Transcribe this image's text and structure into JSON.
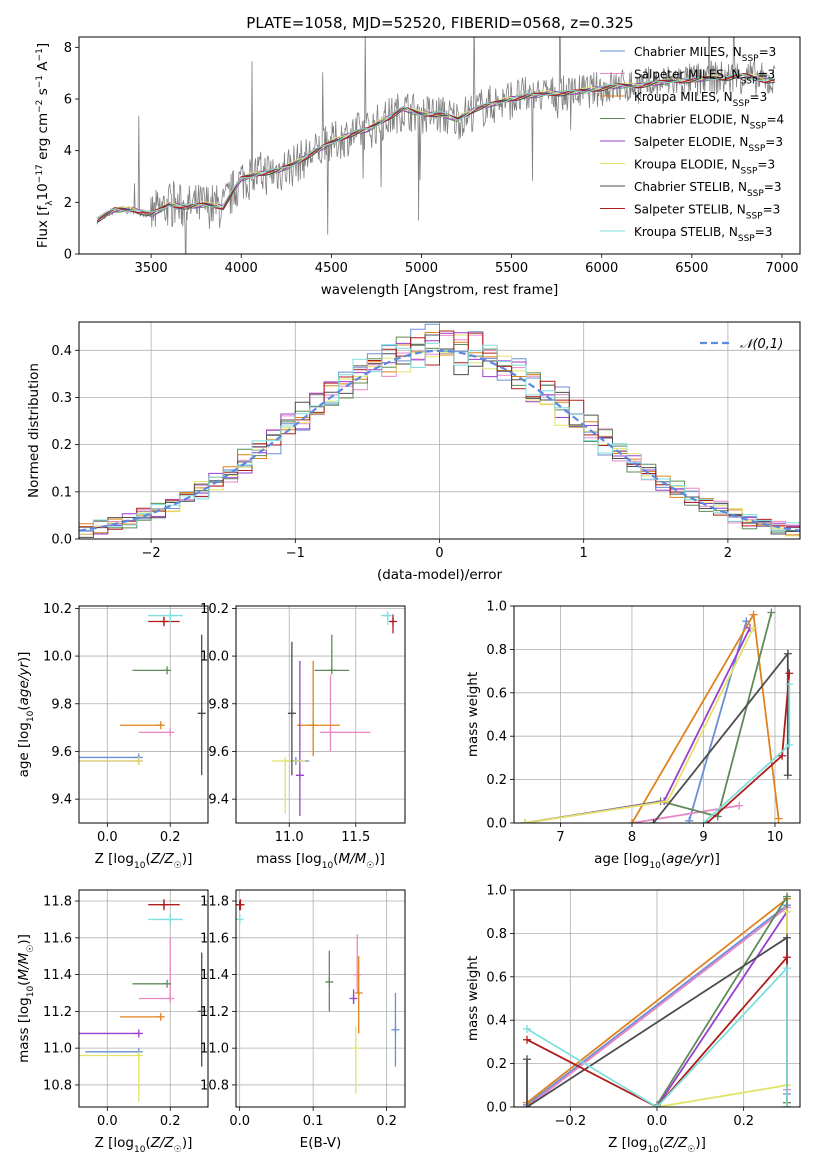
{
  "figure": {
    "title": "PLATE=1058, MJD=52520, FIBERID=0568, z=0.325"
  },
  "colors": {
    "Chabrier MILES": "#6a8fd6",
    "Salpeter MILES": "#e986c6",
    "Kroupa MILES": "#e0821e",
    "Chabrier ELODIE": "#5f8b59",
    "Salpeter ELODIE": "#9a3fcf",
    "Kroupa ELODIE": "#e3e36a",
    "Chabrier STELIB": "#4d4d4d",
    "Salpeter STELIB": "#b01c1c",
    "Kroupa STELIB": "#7fdede"
  },
  "chart_data": [
    {
      "id": "spectrum",
      "type": "line",
      "xlabel": "wavelength [Angstrom, rest frame]",
      "ylabel": "Flux [f_λ 10^-17 erg cm^-2 s^-1 A^-1]",
      "xlim": [
        3100,
        7100
      ],
      "ylim": [
        0,
        8.4
      ],
      "xticks": [
        3500,
        4000,
        4500,
        5000,
        5500,
        6000,
        6500,
        7000
      ],
      "yticks": [
        0,
        2,
        4,
        6,
        8
      ],
      "legend_position": "top-right",
      "legend": [
        {
          "name": "Chabrier MILES",
          "nssp": "3"
        },
        {
          "name": "Salpeter MILES",
          "nssp": "3"
        },
        {
          "name": "Kroupa MILES",
          "nssp": "3"
        },
        {
          "name": "Chabrier ELODIE",
          "nssp": "4"
        },
        {
          "name": "Salpeter ELODIE",
          "nssp": "3"
        },
        {
          "name": "Kroupa ELODIE",
          "nssp": "3"
        },
        {
          "name": "Chabrier STELIB",
          "nssp": "3"
        },
        {
          "name": "Salpeter STELIB",
          "nssp": "3"
        },
        {
          "name": "Kroupa STELIB",
          "nssp": "3"
        }
      ],
      "continuum": {
        "x": [
          3200,
          3300,
          3400,
          3500,
          3600,
          3700,
          3800,
          3900,
          4000,
          4100,
          4200,
          4300,
          4400,
          4500,
          4600,
          4700,
          4800,
          4900,
          5000,
          5100,
          5200,
          5300,
          5400,
          5500,
          5600,
          5700,
          5800,
          5900,
          6000,
          6100,
          6200,
          6300,
          6400,
          6500,
          6600,
          6700,
          6800,
          6900
        ],
        "y": [
          1.3,
          1.7,
          1.7,
          1.5,
          1.9,
          1.8,
          1.9,
          1.8,
          2.9,
          3.1,
          3.2,
          3.5,
          3.9,
          4.3,
          4.6,
          4.8,
          5.2,
          5.6,
          5.4,
          5.4,
          5.2,
          5.6,
          5.8,
          6.0,
          6.1,
          6.2,
          6.2,
          6.3,
          6.4,
          6.5,
          6.5,
          6.6,
          6.7,
          6.7,
          6.8,
          6.8,
          6.9,
          6.7
        ]
      }
    },
    {
      "id": "residuals",
      "type": "histogram",
      "xlabel": "(data-model)/error",
      "ylabel": "Normed distribution",
      "xlim": [
        -2.5,
        2.5
      ],
      "ylim": [
        0,
        0.46
      ],
      "xticks": [
        -2,
        -1,
        0,
        1,
        2
      ],
      "yticks": [
        0.0,
        0.1,
        0.2,
        0.3,
        0.4
      ],
      "grid": true,
      "legend_position": "top-right",
      "reference_curve": {
        "name": "𝒩(0,1)",
        "mean": 0,
        "sigma": 1
      }
    },
    {
      "id": "age-vs-Z",
      "type": "scatter",
      "xlabel": "Z [log10(Z/Z☉)]",
      "ylabel": "age [log10(age/yr)]",
      "xlim": [
        -0.09,
        0.32
      ],
      "ylim": [
        9.3,
        10.21
      ],
      "xticks": [
        0.0,
        0.2
      ],
      "yticks": [
        9.4,
        9.6,
        9.8,
        10.0,
        10.2
      ],
      "grid": true,
      "points": [
        {
          "model": "Chabrier MILES",
          "x": 0.1,
          "xerr": [
            0.2,
            0.0
          ],
          "y": 9.575,
          "yerr": [
            0.0,
            0.0
          ]
        },
        {
          "model": "Salpeter MILES",
          "x": 0.2,
          "xerr": [
            0.1,
            0.0
          ],
          "y": 9.68,
          "yerr": [
            0.0,
            0.0
          ]
        },
        {
          "model": "Kroupa MILES",
          "x": 0.17,
          "xerr": [
            0.13,
            0.0
          ],
          "y": 9.71,
          "yerr": [
            0.0,
            0.0
          ]
        },
        {
          "model": "Chabrier ELODIE",
          "x": 0.19,
          "xerr": [
            0.11,
            0.0
          ],
          "y": 9.94,
          "yerr": [
            0.0,
            0.0
          ]
        },
        {
          "model": "Salpeter ELODIE",
          "x": 0.1,
          "xerr": [
            0.2,
            0.0
          ],
          "y": 9.56,
          "yerr": [
            0.0,
            0.0
          ]
        },
        {
          "model": "Kroupa ELODIE",
          "x": 0.1,
          "xerr": [
            0.2,
            0.0
          ],
          "y": 9.56,
          "yerr": [
            0.0,
            0.0
          ]
        },
        {
          "model": "Chabrier STELIB",
          "x": 0.3,
          "xerr": [
            0.0,
            0.0
          ],
          "y": 9.76,
          "yerr": [
            0.26,
            0.33
          ]
        },
        {
          "model": "Salpeter STELIB",
          "x": 0.18,
          "xerr": [
            0.05,
            0.05
          ],
          "y": 10.145,
          "yerr": [
            0.02,
            0.02
          ]
        },
        {
          "model": "Kroupa STELIB",
          "x": 0.2,
          "xerr": [
            0.07,
            0.04
          ],
          "y": 10.17,
          "yerr": [
            0.03,
            0.01
          ]
        }
      ]
    },
    {
      "id": "age-vs-mass",
      "type": "scatter",
      "xlabel": "mass [log10(M/M☉)]",
      "ylabel": "",
      "xlim": [
        10.6,
        11.87
      ],
      "ylim": [
        9.3,
        10.21
      ],
      "xticks": [
        11.0,
        11.5
      ],
      "yticks": [
        9.4,
        9.6,
        9.8,
        10.0,
        10.2
      ],
      "grid": true,
      "points": [
        {
          "model": "Chabrier MILES",
          "x": 11.05,
          "xerr": [
            0.05,
            0.1
          ],
          "y": 9.56,
          "yerr": [
            0.0,
            0.0
          ]
        },
        {
          "model": "Salpeter MILES",
          "x": 11.31,
          "xerr": [
            0.08,
            0.3
          ],
          "y": 9.68,
          "yerr": [
            0.08,
            0.24
          ]
        },
        {
          "model": "Kroupa MILES",
          "x": 11.18,
          "xerr": [
            0.12,
            0.2
          ],
          "y": 9.71,
          "yerr": [
            0.13,
            0.27
          ]
        },
        {
          "model": "Chabrier ELODIE",
          "x": 11.32,
          "xerr": [
            0.13,
            0.13
          ],
          "y": 9.94,
          "yerr": [
            0.0,
            0.15
          ]
        },
        {
          "model": "Salpeter ELODIE",
          "x": 11.08,
          "xerr": [
            0.0,
            0.0
          ],
          "y": 9.5,
          "yerr": [
            0.17,
            0.48
          ]
        },
        {
          "model": "Kroupa ELODIE",
          "x": 10.97,
          "xerr": [
            0.1,
            0.15
          ],
          "y": 9.56,
          "yerr": [
            0.22,
            0.0
          ]
        },
        {
          "model": "Chabrier STELIB",
          "x": 11.02,
          "xerr": [
            0.0,
            0.0
          ],
          "y": 9.76,
          "yerr": [
            0.26,
            0.3
          ]
        },
        {
          "model": "Salpeter STELIB",
          "x": 11.78,
          "xerr": [
            0.02,
            0.01
          ],
          "y": 10.145,
          "yerr": [
            0.05,
            0.03
          ]
        },
        {
          "model": "Kroupa STELIB",
          "x": 11.74,
          "xerr": [
            0.05,
            0.02
          ],
          "y": 10.17,
          "yerr": [
            0.04,
            0.01
          ]
        }
      ]
    },
    {
      "id": "massweight-vs-age",
      "type": "line",
      "xlabel": "age [log10(age/yr)]",
      "ylabel": "mass weight",
      "xlim": [
        6.35,
        10.35
      ],
      "ylim": [
        0,
        1.0
      ],
      "xticks": [
        7,
        8,
        9,
        10
      ],
      "yticks": [
        0.0,
        0.2,
        0.4,
        0.6,
        0.8,
        1.0
      ],
      "grid": true,
      "series": [
        {
          "model": "Chabrier MILES",
          "x": [
            8.8,
            9.6
          ],
          "y": [
            0.01,
            0.93
          ]
        },
        {
          "model": "Salpeter MILES",
          "x": [
            8.0,
            9.5
          ],
          "y": [
            0.0,
            0.08
          ]
        },
        {
          "model": "Kroupa MILES",
          "x": [
            8.0,
            9.7,
            10.05
          ],
          "y": [
            0.0,
            0.96,
            0.02
          ]
        },
        {
          "model": "Chabrier ELODIE",
          "x": [
            6.5,
            8.4,
            9.2,
            9.95
          ],
          "y": [
            0.0,
            0.1,
            0.03,
            0.97
          ]
        },
        {
          "model": "Salpeter ELODIE",
          "x": [
            6.5,
            8.45,
            9.65
          ],
          "y": [
            0.0,
            0.1,
            0.9
          ]
        },
        {
          "model": "Kroupa ELODIE",
          "x": [
            6.5,
            8.5,
            9.7
          ],
          "y": [
            0.0,
            0.1,
            0.9
          ]
        },
        {
          "model": "Chabrier STELIB",
          "x": [
            8.3,
            10.18,
            10.18
          ],
          "y": [
            0.0,
            0.78,
            0.22
          ]
        },
        {
          "model": "Salpeter STELIB",
          "x": [
            9.05,
            10.1,
            10.2
          ],
          "y": [
            0.0,
            0.31,
            0.69
          ]
        },
        {
          "model": "Kroupa STELIB",
          "x": [
            9.0,
            10.2,
            10.2
          ],
          "y": [
            0.0,
            0.36,
            0.64
          ]
        }
      ]
    },
    {
      "id": "mass-vs-Z",
      "type": "scatter",
      "xlabel": "Z [log10(Z/Z☉)]",
      "ylabel": "mass [log10(M/M☉)]",
      "xlim": [
        -0.09,
        0.32
      ],
      "ylim": [
        10.68,
        11.86
      ],
      "xticks": [
        0.0,
        0.2
      ],
      "yticks": [
        10.8,
        11.0,
        11.2,
        11.4,
        11.6,
        11.8
      ],
      "grid": true,
      "points": [
        {
          "model": "Chabrier MILES",
          "x": 0.1,
          "xerr": [
            0.17,
            0.0
          ],
          "y": 10.98,
          "yerr": [
            0.0,
            0.0
          ]
        },
        {
          "model": "Salpeter MILES",
          "x": 0.2,
          "xerr": [
            0.1,
            0.0
          ],
          "y": 11.27,
          "yerr": [
            0.0,
            0.33
          ]
        },
        {
          "model": "Kroupa MILES",
          "x": 0.17,
          "xerr": [
            0.13,
            0.0
          ],
          "y": 11.17,
          "yerr": [
            0.0,
            0.0
          ]
        },
        {
          "model": "Chabrier ELODIE",
          "x": 0.19,
          "xerr": [
            0.11,
            0.0
          ],
          "y": 11.35,
          "yerr": [
            0.0,
            0.0
          ]
        },
        {
          "model": "Salpeter ELODIE",
          "x": 0.1,
          "xerr": [
            0.2,
            0.0
          ],
          "y": 11.08,
          "yerr": [
            0.0,
            0.0
          ]
        },
        {
          "model": "Kroupa ELODIE",
          "x": 0.1,
          "xerr": [
            0.2,
            0.0
          ],
          "y": 10.96,
          "yerr": [
            0.25,
            0.0
          ]
        },
        {
          "model": "Chabrier STELIB",
          "x": 0.3,
          "xerr": [
            0.0,
            0.0
          ],
          "y": 11.2,
          "yerr": [
            0.3,
            0.32
          ]
        },
        {
          "model": "Salpeter STELIB",
          "x": 0.18,
          "xerr": [
            0.05,
            0.05
          ],
          "y": 11.78,
          "yerr": [
            0.03,
            0.03
          ]
        },
        {
          "model": "Kroupa STELIB",
          "x": 0.2,
          "xerr": [
            0.07,
            0.04
          ],
          "y": 11.7,
          "yerr": [
            0.03,
            0.03
          ]
        }
      ]
    },
    {
      "id": "mass-vs-ebv",
      "type": "scatter",
      "xlabel": "E(B-V)",
      "ylabel": "",
      "xlim": [
        -0.005,
        0.225
      ],
      "ylim": [
        10.68,
        11.86
      ],
      "xticks": [
        0.0,
        0.1,
        0.2
      ],
      "yticks": [
        10.8,
        11.0,
        11.2,
        11.4,
        11.6,
        11.8
      ],
      "grid": true,
      "points": [
        {
          "model": "Chabrier MILES",
          "x": 0.212,
          "xerr": [
            0.0,
            0.0
          ],
          "y": 11.1,
          "yerr": [
            0.2,
            0.2
          ]
        },
        {
          "model": "Salpeter MILES",
          "x": 0.16,
          "xerr": [
            0.0,
            0.0
          ],
          "y": 11.4,
          "yerr": [
            0.1,
            0.22
          ]
        },
        {
          "model": "Kroupa MILES",
          "x": 0.162,
          "xerr": [
            0.0,
            0.0
          ],
          "y": 11.3,
          "yerr": [
            0.22,
            0.2
          ]
        },
        {
          "model": "Chabrier ELODIE",
          "x": 0.122,
          "xerr": [
            0.0,
            0.0
          ],
          "y": 11.36,
          "yerr": [
            0.16,
            0.17
          ]
        },
        {
          "model": "Salpeter ELODIE",
          "x": 0.155,
          "xerr": [
            0.0,
            0.0
          ],
          "y": 11.27,
          "yerr": [
            0.03,
            0.05
          ]
        },
        {
          "model": "Kroupa ELODIE",
          "x": 0.158,
          "xerr": [
            0.0,
            0.0
          ],
          "y": 11.0,
          "yerr": [
            0.25,
            0.12
          ]
        },
        {
          "model": "Chabrier STELIB",
          "x": 0.0,
          "xerr": [
            0.0,
            0.0
          ],
          "y": 11.78,
          "yerr": [
            0.03,
            0.02
          ]
        },
        {
          "model": "Salpeter STELIB",
          "x": 0.001,
          "xerr": [
            0.0,
            0.0
          ],
          "y": 11.78,
          "yerr": [
            0.03,
            0.03
          ]
        },
        {
          "model": "Kroupa STELIB",
          "x": 0.0,
          "xerr": [
            0.0,
            0.0
          ],
          "y": 11.7,
          "yerr": [
            0.03,
            0.03
          ]
        }
      ]
    },
    {
      "id": "massweight-vs-Z",
      "type": "line",
      "xlabel": "Z [log10(Z/Z☉)]",
      "ylabel": "mass weight",
      "xlim": [
        -0.33,
        0.33
      ],
      "ylim": [
        0,
        1.0
      ],
      "xticks": [
        -0.2,
        0.0,
        0.2
      ],
      "yticks": [
        0.0,
        0.2,
        0.4,
        0.6,
        0.8,
        1.0
      ],
      "grid": true,
      "series": [
        {
          "model": "Chabrier MILES",
          "x": [
            -0.3,
            0.3,
            0.3
          ],
          "y": [
            0.01,
            0.93,
            0.06
          ]
        },
        {
          "model": "Salpeter MILES",
          "x": [
            -0.3,
            0.3,
            0.3
          ],
          "y": [
            0.0,
            0.92,
            0.08
          ]
        },
        {
          "model": "Kroupa MILES",
          "x": [
            -0.3,
            0.3,
            0.3
          ],
          "y": [
            0.02,
            0.96,
            0.02
          ]
        },
        {
          "model": "Chabrier ELODIE",
          "x": [
            0.0,
            0.3,
            0.3
          ],
          "y": [
            0.01,
            0.97,
            0.02
          ]
        },
        {
          "model": "Salpeter ELODIE",
          "x": [
            0.0,
            0.3,
            0.3
          ],
          "y": [
            0.0,
            0.9,
            0.1
          ]
        },
        {
          "model": "Kroupa ELODIE",
          "x": [
            0.0,
            0.3,
            0.3
          ],
          "y": [
            0.0,
            0.1,
            0.9
          ]
        },
        {
          "model": "Chabrier STELIB",
          "x": [
            -0.3,
            -0.3,
            0.3,
            0.3
          ],
          "y": [
            0.22,
            0.0,
            0.78,
            0.0
          ]
        },
        {
          "model": "Salpeter STELIB",
          "x": [
            -0.3,
            0.0,
            0.3,
            0.3
          ],
          "y": [
            0.31,
            0.0,
            0.69,
            0.0
          ]
        },
        {
          "model": "Kroupa STELIB",
          "x": [
            -0.3,
            0.0,
            0.3,
            0.3
          ],
          "y": [
            0.36,
            0.0,
            0.64,
            0.0
          ]
        }
      ]
    }
  ]
}
